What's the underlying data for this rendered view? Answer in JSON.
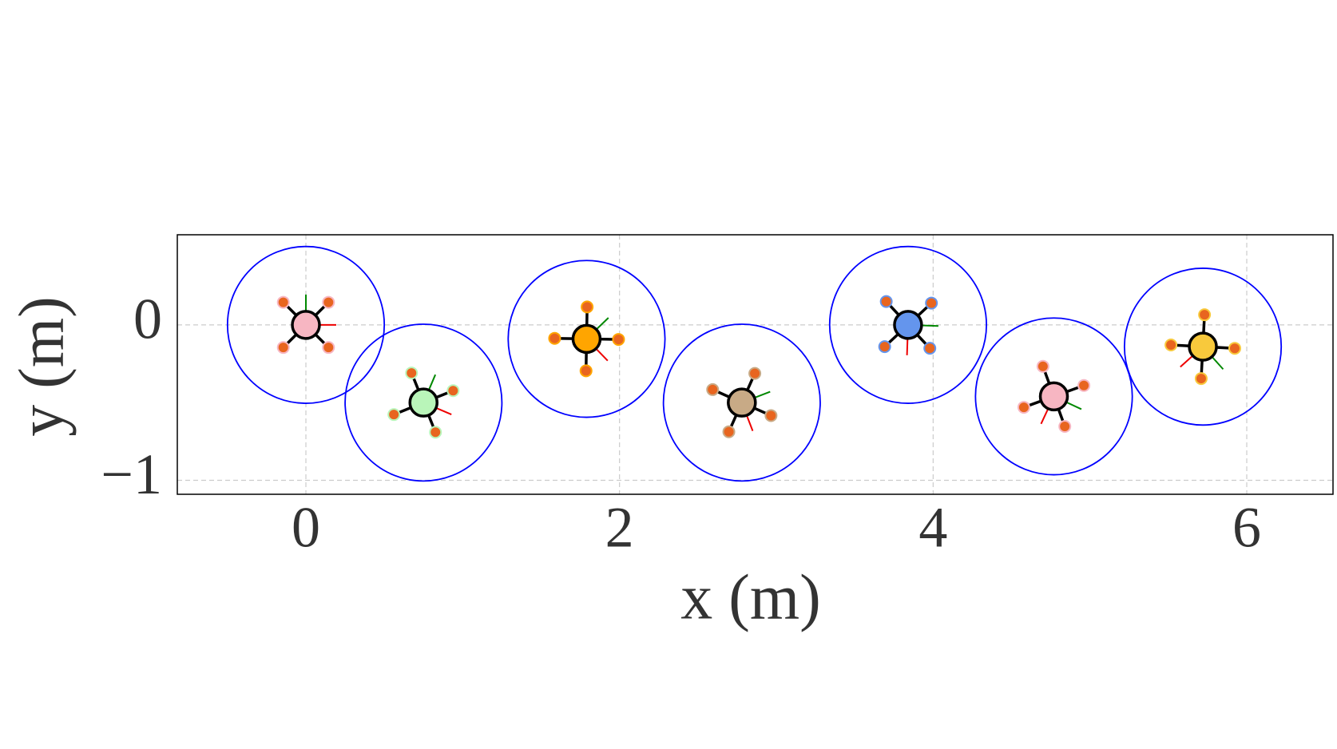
{
  "chart_data": {
    "type": "scatter",
    "x_label": "x (m)",
    "y_label": "y (m)",
    "x": [
      0,
      0.75,
      1.79,
      2.78,
      3.84,
      4.77,
      5.72
    ],
    "series": [
      {
        "values": [
          0,
          -0.5,
          -0.09,
          -0.5,
          0,
          -0.46,
          -0.14
        ],
        "colors": [
          "#f7b6c2",
          "#b9f5b9",
          "#ffa500",
          "#c8aa86",
          "#6495ed",
          "#f7b6c2",
          "#f8c93c"
        ]
      }
    ],
    "radius": 0.5,
    "circle_color": "#0000ff",
    "xlim": [
      -0.82,
      6.55
    ],
    "ylim": [
      -1.09,
      0.58
    ],
    "xticks": [
      0,
      2,
      4,
      6
    ],
    "yticks": [
      {
        "value": -1,
        "label": "−1"
      },
      0
    ],
    "grid": true
  }
}
